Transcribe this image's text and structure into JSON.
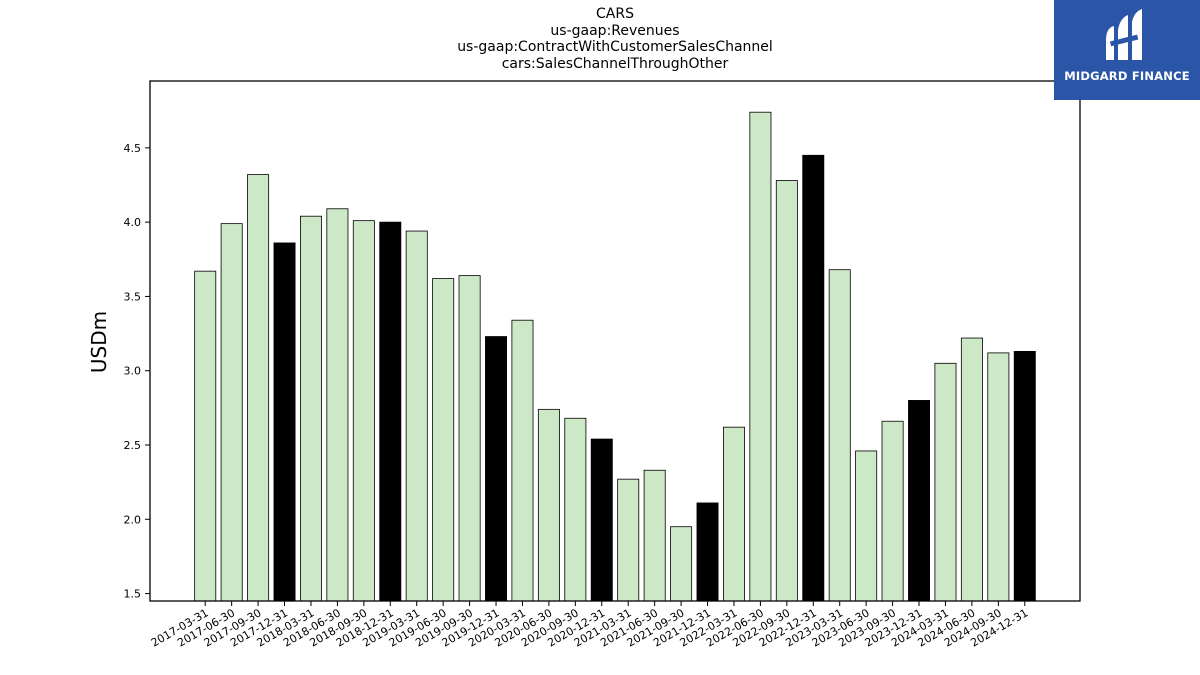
{
  "chart_data": {
    "type": "bar",
    "title_lines": [
      "CARS",
      "us-gaap:Revenues",
      "us-gaap:ContractWithCustomerSalesChannel",
      "cars:SalesChannelThroughOther"
    ],
    "xlabel": "",
    "ylabel": "USDm",
    "ylim": [
      1.45,
      4.95
    ],
    "yticks": [
      "1.5",
      "2.0",
      "2.5",
      "3.0",
      "3.5",
      "4.0",
      "4.5"
    ],
    "categories": [
      "2017-03-31",
      "2017-06-30",
      "2017-09-30",
      "2017-12-31",
      "2018-03-31",
      "2018-06-30",
      "2018-09-30",
      "2018-12-31",
      "2019-03-31",
      "2019-06-30",
      "2019-09-30",
      "2019-12-31",
      "2020-03-31",
      "2020-06-30",
      "2020-09-30",
      "2020-12-31",
      "2021-03-31",
      "2021-06-30",
      "2021-09-30",
      "2021-12-31",
      "2022-03-31",
      "2022-06-30",
      "2022-09-30",
      "2022-12-31",
      "2023-03-31",
      "2023-06-30",
      "2023-09-30",
      "2023-12-31",
      "2024-03-31",
      "2024-06-30",
      "2024-09-30",
      "2024-12-31"
    ],
    "values": [
      3.67,
      3.99,
      4.32,
      3.86,
      4.04,
      4.09,
      4.01,
      4.0,
      3.94,
      3.62,
      3.64,
      3.23,
      3.34,
      2.74,
      2.68,
      2.54,
      2.27,
      2.33,
      1.95,
      2.11,
      2.62,
      4.74,
      4.28,
      4.45,
      3.68,
      2.46,
      2.66,
      2.8,
      3.05,
      3.22,
      3.12,
      3.13
    ],
    "highlight_quarter": "12-31",
    "colors": {
      "normal": "#cde8c6",
      "highlight": "#000000",
      "edge": "#000000"
    },
    "grid": false,
    "legend": "none"
  },
  "logo": {
    "text": "MIDGARD FINANCE",
    "background": "#2b56a8"
  }
}
